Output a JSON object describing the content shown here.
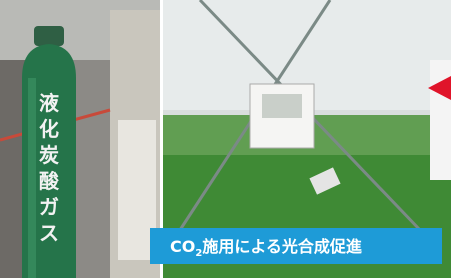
{
  "cylinder_label": [
    "液",
    "化",
    "炭",
    "酸",
    "ガ",
    "ス"
  ],
  "caption": {
    "prefix": "CO",
    "subscript": "2",
    "suffix": "施用による光合成促進"
  }
}
